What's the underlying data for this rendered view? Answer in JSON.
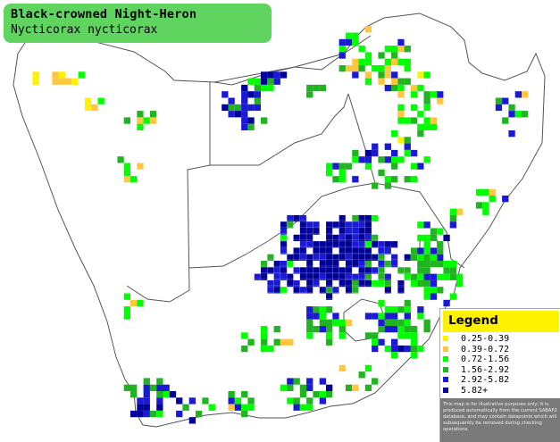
{
  "title": {
    "common_name": "Black-crowned Night-Heron",
    "scientific_name": "Nycticorax nycticorax"
  },
  "legend": {
    "title": "Legend",
    "items": [
      {
        "label": "0.25-0.39",
        "color": "#fff200"
      },
      {
        "label": "0.39-0.72",
        "color": "#ffc642"
      },
      {
        "label": "0.72-1.56",
        "color": "#00ff00"
      },
      {
        "label": "1.56-2.92",
        "color": "#21b321"
      },
      {
        "label": "2.92-5.82",
        "color": "#1a1ad6"
      },
      {
        "label": "5.82+",
        "color": "#000099"
      }
    ],
    "disclaimer": "This map is for illustrative purposes only; it is produced automatically from the current SABAP2 database, and may contain datapoints which will subsequently be removed during checking operations."
  },
  "map": {
    "grid": "on",
    "boundary_color": "#555555"
  }
}
